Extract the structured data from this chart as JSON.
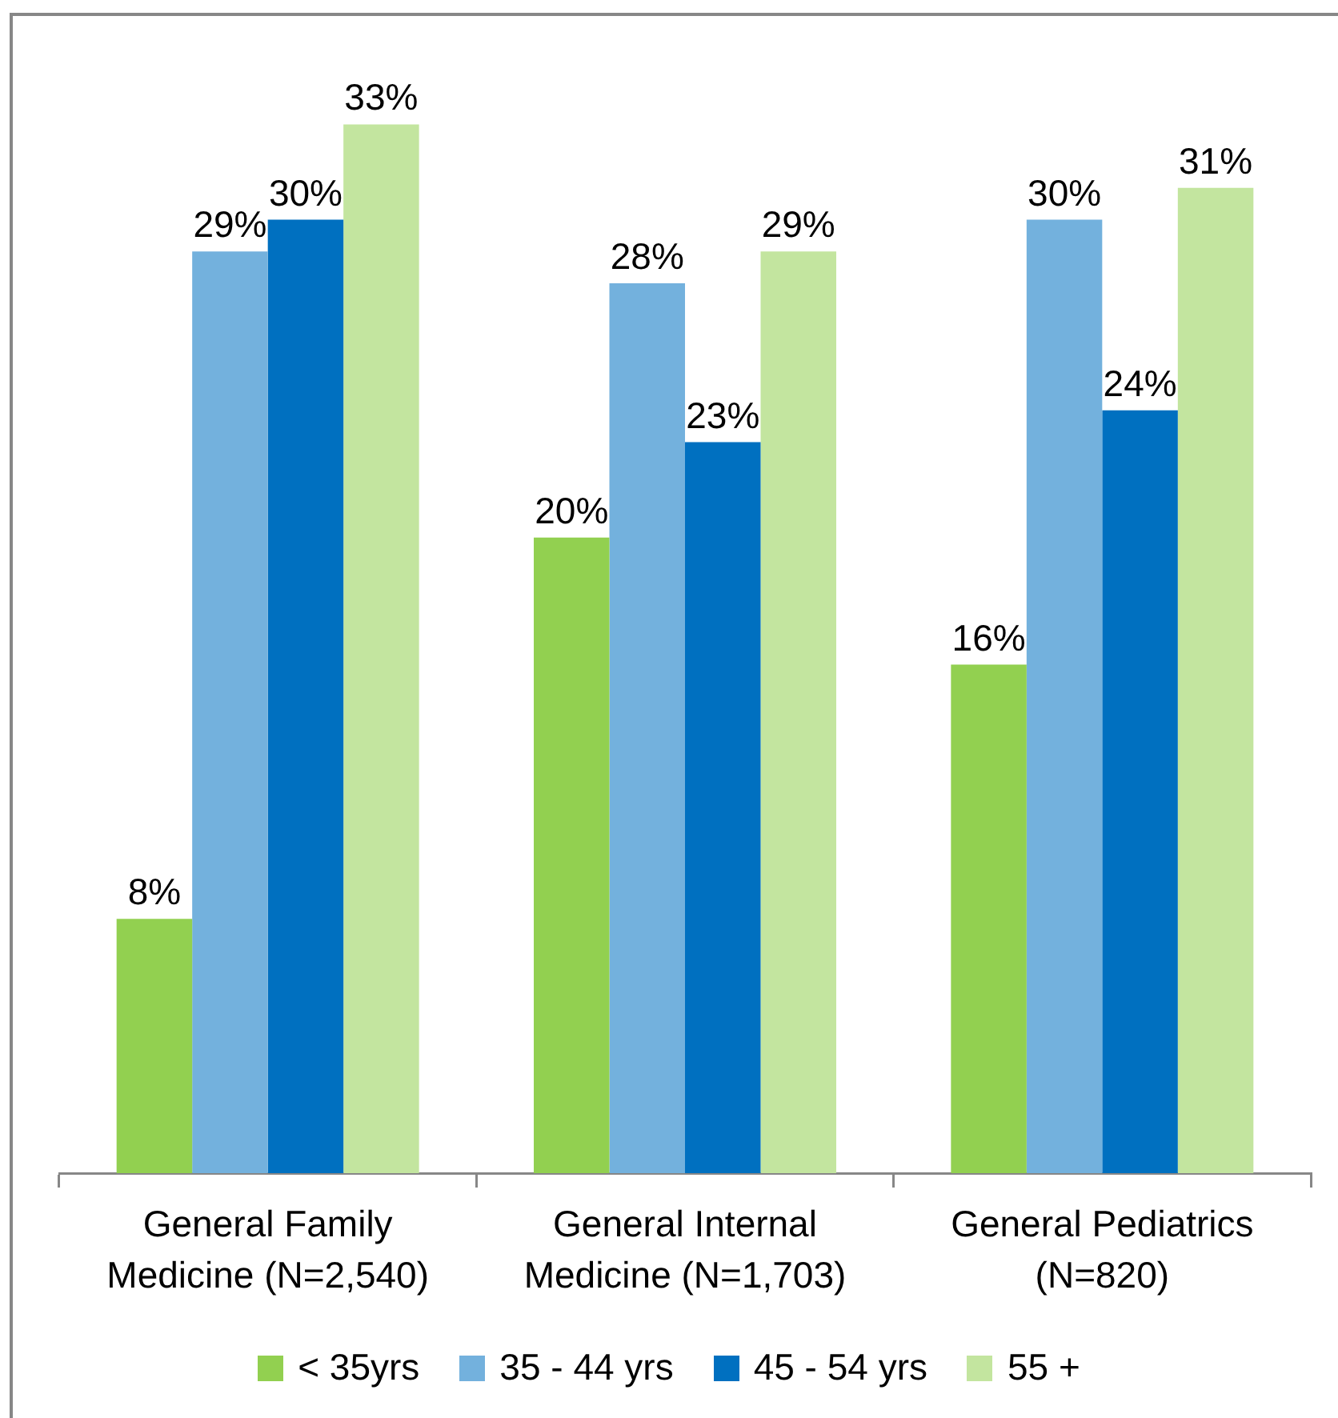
{
  "chart_data": {
    "type": "bar",
    "categories": [
      "General Family Medicine (N=2,540)",
      "General Internal Medicine (N=1,703)",
      "General Pediatrics (N=820)"
    ],
    "series": [
      {
        "name": "< 35yrs",
        "color": "#92d050",
        "values": [
          8,
          20,
          16
        ],
        "value_labels": [
          "8%",
          "20%",
          "16%"
        ]
      },
      {
        "name": "35 - 44 yrs",
        "color": "#73b1dd",
        "values": [
          29,
          28,
          30
        ],
        "value_labels": [
          "29%",
          "28%",
          "30%"
        ]
      },
      {
        "name": "45 - 54 yrs",
        "color": "#0070c0",
        "values": [
          30,
          23,
          24
        ],
        "value_labels": [
          "30%",
          "23%",
          "24%"
        ]
      },
      {
        "name": "55 +",
        "color": "#c3e59f",
        "values": [
          33,
          29,
          31
        ],
        "value_labels": [
          "33%",
          "29%",
          "31%"
        ]
      }
    ],
    "legend": "bottom",
    "grid": false
  }
}
